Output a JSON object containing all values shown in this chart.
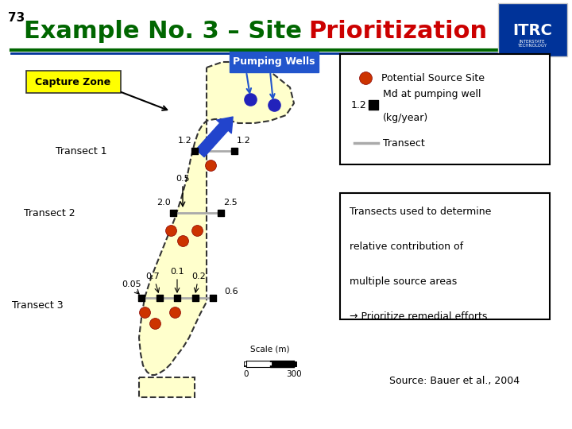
{
  "title_number": "73",
  "bg_color": "#ffffff",
  "capture_zone_color": "#ffffcc",
  "pumping_well_color": "#2222bb",
  "source_site_color": "#cc3300",
  "transect_color": "#999999",
  "pumping_wells_label": "Pumping Wells",
  "capture_zone_label": "Capture Zone",
  "text_box": "Transects used to determine\n\nrelative contribution of\n\nmultiple source areas\n\n→ Prioritize remedial efforts",
  "source_text": "Source: Bauer et al., 2004"
}
